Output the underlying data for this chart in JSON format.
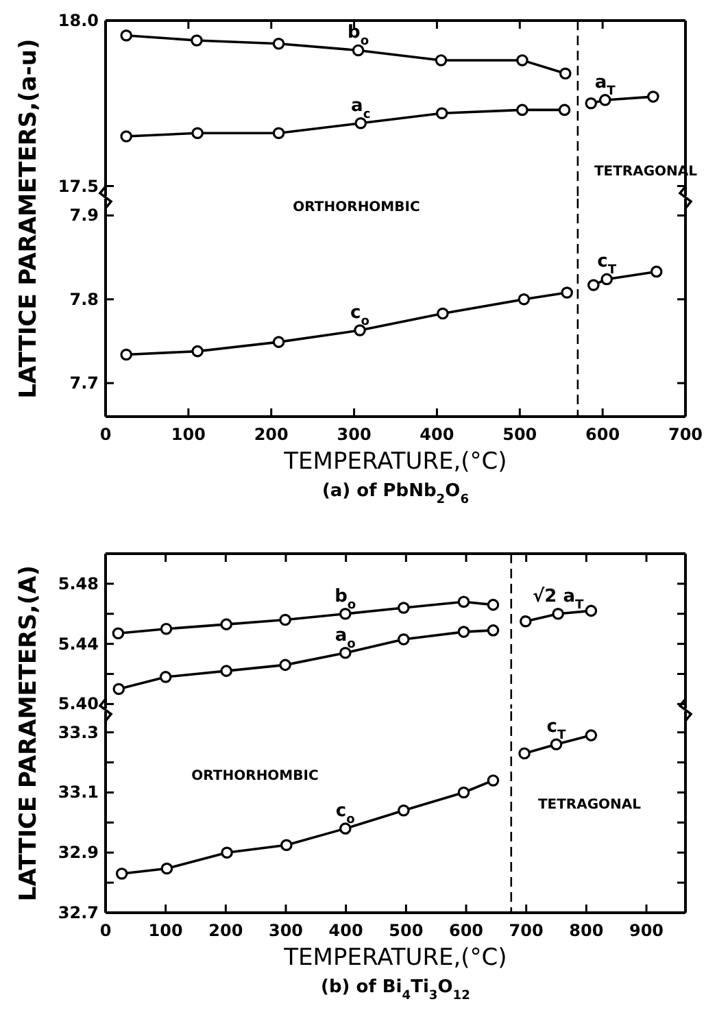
{
  "chart_data": [
    {
      "type": "line",
      "ylabel": "LATTICE PARAMETERS,(a-u)",
      "xlim": [
        0,
        700
      ],
      "xticks": [
        0,
        100,
        200,
        300,
        400,
        500,
        600,
        700
      ],
      "ylim": [
        17.47,
        18.0
      ],
      "yticks": [
        17.5,
        {
          "value": 18.0,
          "label": "18.0"
        }
      ],
      "tick_labels": "y",
      "marker": "circle",
      "line_style": "solid",
      "series": [
        {
          "name": "b$_{o}$",
          "color": "#000000",
          "x": [
            25,
            110,
            209,
            305,
            405,
            503,
            555
          ],
          "values": [
            17.955,
            17.94,
            17.93,
            17.91,
            17.88,
            17.88,
            17.84
          ]
        },
        {
          "name": "a$_{c}$",
          "color": "#000000",
          "x": [
            25,
            111,
            209,
            308,
            406,
            503,
            554
          ],
          "values": [
            17.65,
            17.66,
            17.66,
            17.69,
            17.72,
            17.73,
            17.73
          ]
        },
        {
          "name": "a$_{T}$",
          "color": "#000000",
          "x": [
            586,
            603,
            661
          ],
          "values": [
            17.75,
            17.76,
            17.77
          ]
        }
      ],
      "ref_lines": [
        {
          "axis": "x",
          "value": 570,
          "line_style": "dashed"
        }
      ],
      "annotations": [
        "TETRAGONAL"
      ]
    },
    {
      "type": "line",
      "xlabel": "TEMPERATURE,(°C)",
      "xlim": [
        0,
        700
      ],
      "xticks": [
        0,
        100,
        200,
        300,
        400,
        500,
        600,
        700
      ],
      "ylim": [
        7.66,
        7.92
      ],
      "yticks": [
        7.7,
        7.8,
        7.9
      ],
      "marker": "circle",
      "line_style": "solid",
      "series": [
        {
          "name": "c$_{o}$",
          "color": "#000000",
          "x": [
            25,
            111,
            209,
            307,
            407,
            505,
            557
          ],
          "values": [
            7.734,
            7.738,
            7.749,
            7.763,
            7.783,
            7.8,
            7.808
          ]
        },
        {
          "name": "c$_{T}$",
          "color": "#000000",
          "x": [
            589,
            605,
            665
          ],
          "values": [
            7.817,
            7.824,
            7.833
          ]
        }
      ],
      "ref_lines": [
        {
          "axis": "x",
          "value": 570,
          "line_style": "dashed"
        }
      ],
      "annotations": [
        "ORTHORHOMBIC",
        "(a) of PbNb$_{2}$O$_{6}$"
      ]
    },
    {
      "type": "line",
      "ylabel": "LATTICE PARAMETERS,(A)",
      "xlim": [
        0,
        965
      ],
      "xticks": [
        0,
        100,
        200,
        300,
        400,
        500,
        600,
        700,
        800,
        900
      ],
      "ylim": [
        5.397,
        5.5
      ],
      "yticks": [
        {
          "value": 5.4,
          "label": "5.40"
        },
        {
          "value": 5.42,
          "label": null
        },
        5.44,
        {
          "value": 5.46,
          "label": null
        },
        5.48
      ],
      "tick_labels": "y",
      "marker": "circle",
      "line_style": "solid",
      "series": [
        {
          "name": "b$_{o}$",
          "color": "#000000",
          "x": [
            21,
            101,
            201,
            299,
            399,
            496,
            596,
            645
          ],
          "values": [
            5.447,
            5.45,
            5.453,
            5.456,
            5.46,
            5.464,
            5.468,
            5.466
          ]
        },
        {
          "name": "a$_{o}$",
          "color": "#000000",
          "x": [
            22,
            100,
            201,
            299,
            399,
            496,
            596,
            645
          ],
          "values": [
            5.41,
            5.418,
            5.422,
            5.426,
            5.434,
            5.443,
            5.448,
            5.449
          ]
        },
        {
          "name": "√2 a$_{T}$",
          "color": "#000000",
          "x": [
            699,
            753,
            808
          ],
          "values": [
            5.455,
            5.46,
            5.462
          ]
        }
      ],
      "ref_lines": [
        {
          "axis": "x",
          "value": 675,
          "line_style": "dashed"
        }
      ]
    },
    {
      "type": "line",
      "xlabel": "TEMPERATURE,(°C)",
      "xlim": [
        0,
        965
      ],
      "xticks": [
        0,
        100,
        200,
        300,
        400,
        500,
        600,
        700,
        800,
        900
      ],
      "ylim": [
        32.7,
        33.37
      ],
      "yticks": [
        32.7,
        {
          "value": 32.8,
          "label": null
        },
        32.9,
        {
          "value": 33.0,
          "label": null
        },
        33.1,
        {
          "value": 33.2,
          "label": null
        },
        33.3
      ],
      "marker": "circle",
      "line_style": "solid",
      "series": [
        {
          "name": "c$_{o}$",
          "color": "#000000",
          "x": [
            27,
            102,
            202,
            301,
            399,
            496,
            596,
            645
          ],
          "values": [
            32.83,
            32.847,
            32.9,
            32.925,
            32.98,
            33.04,
            33.1,
            33.14
          ]
        },
        {
          "name": "c$_{T}$",
          "color": "#000000",
          "x": [
            697,
            750,
            808
          ],
          "values": [
            33.23,
            33.26,
            33.29
          ]
        }
      ],
      "ref_lines": [
        {
          "axis": "x",
          "value": 675,
          "line_style": "dashed"
        }
      ],
      "annotations": [
        "ORTHORHOMBIC",
        "TETRAGONAL",
        "(b) of Bi$_{4}$Ti$_{3}$O$_{12}$"
      ]
    }
  ]
}
